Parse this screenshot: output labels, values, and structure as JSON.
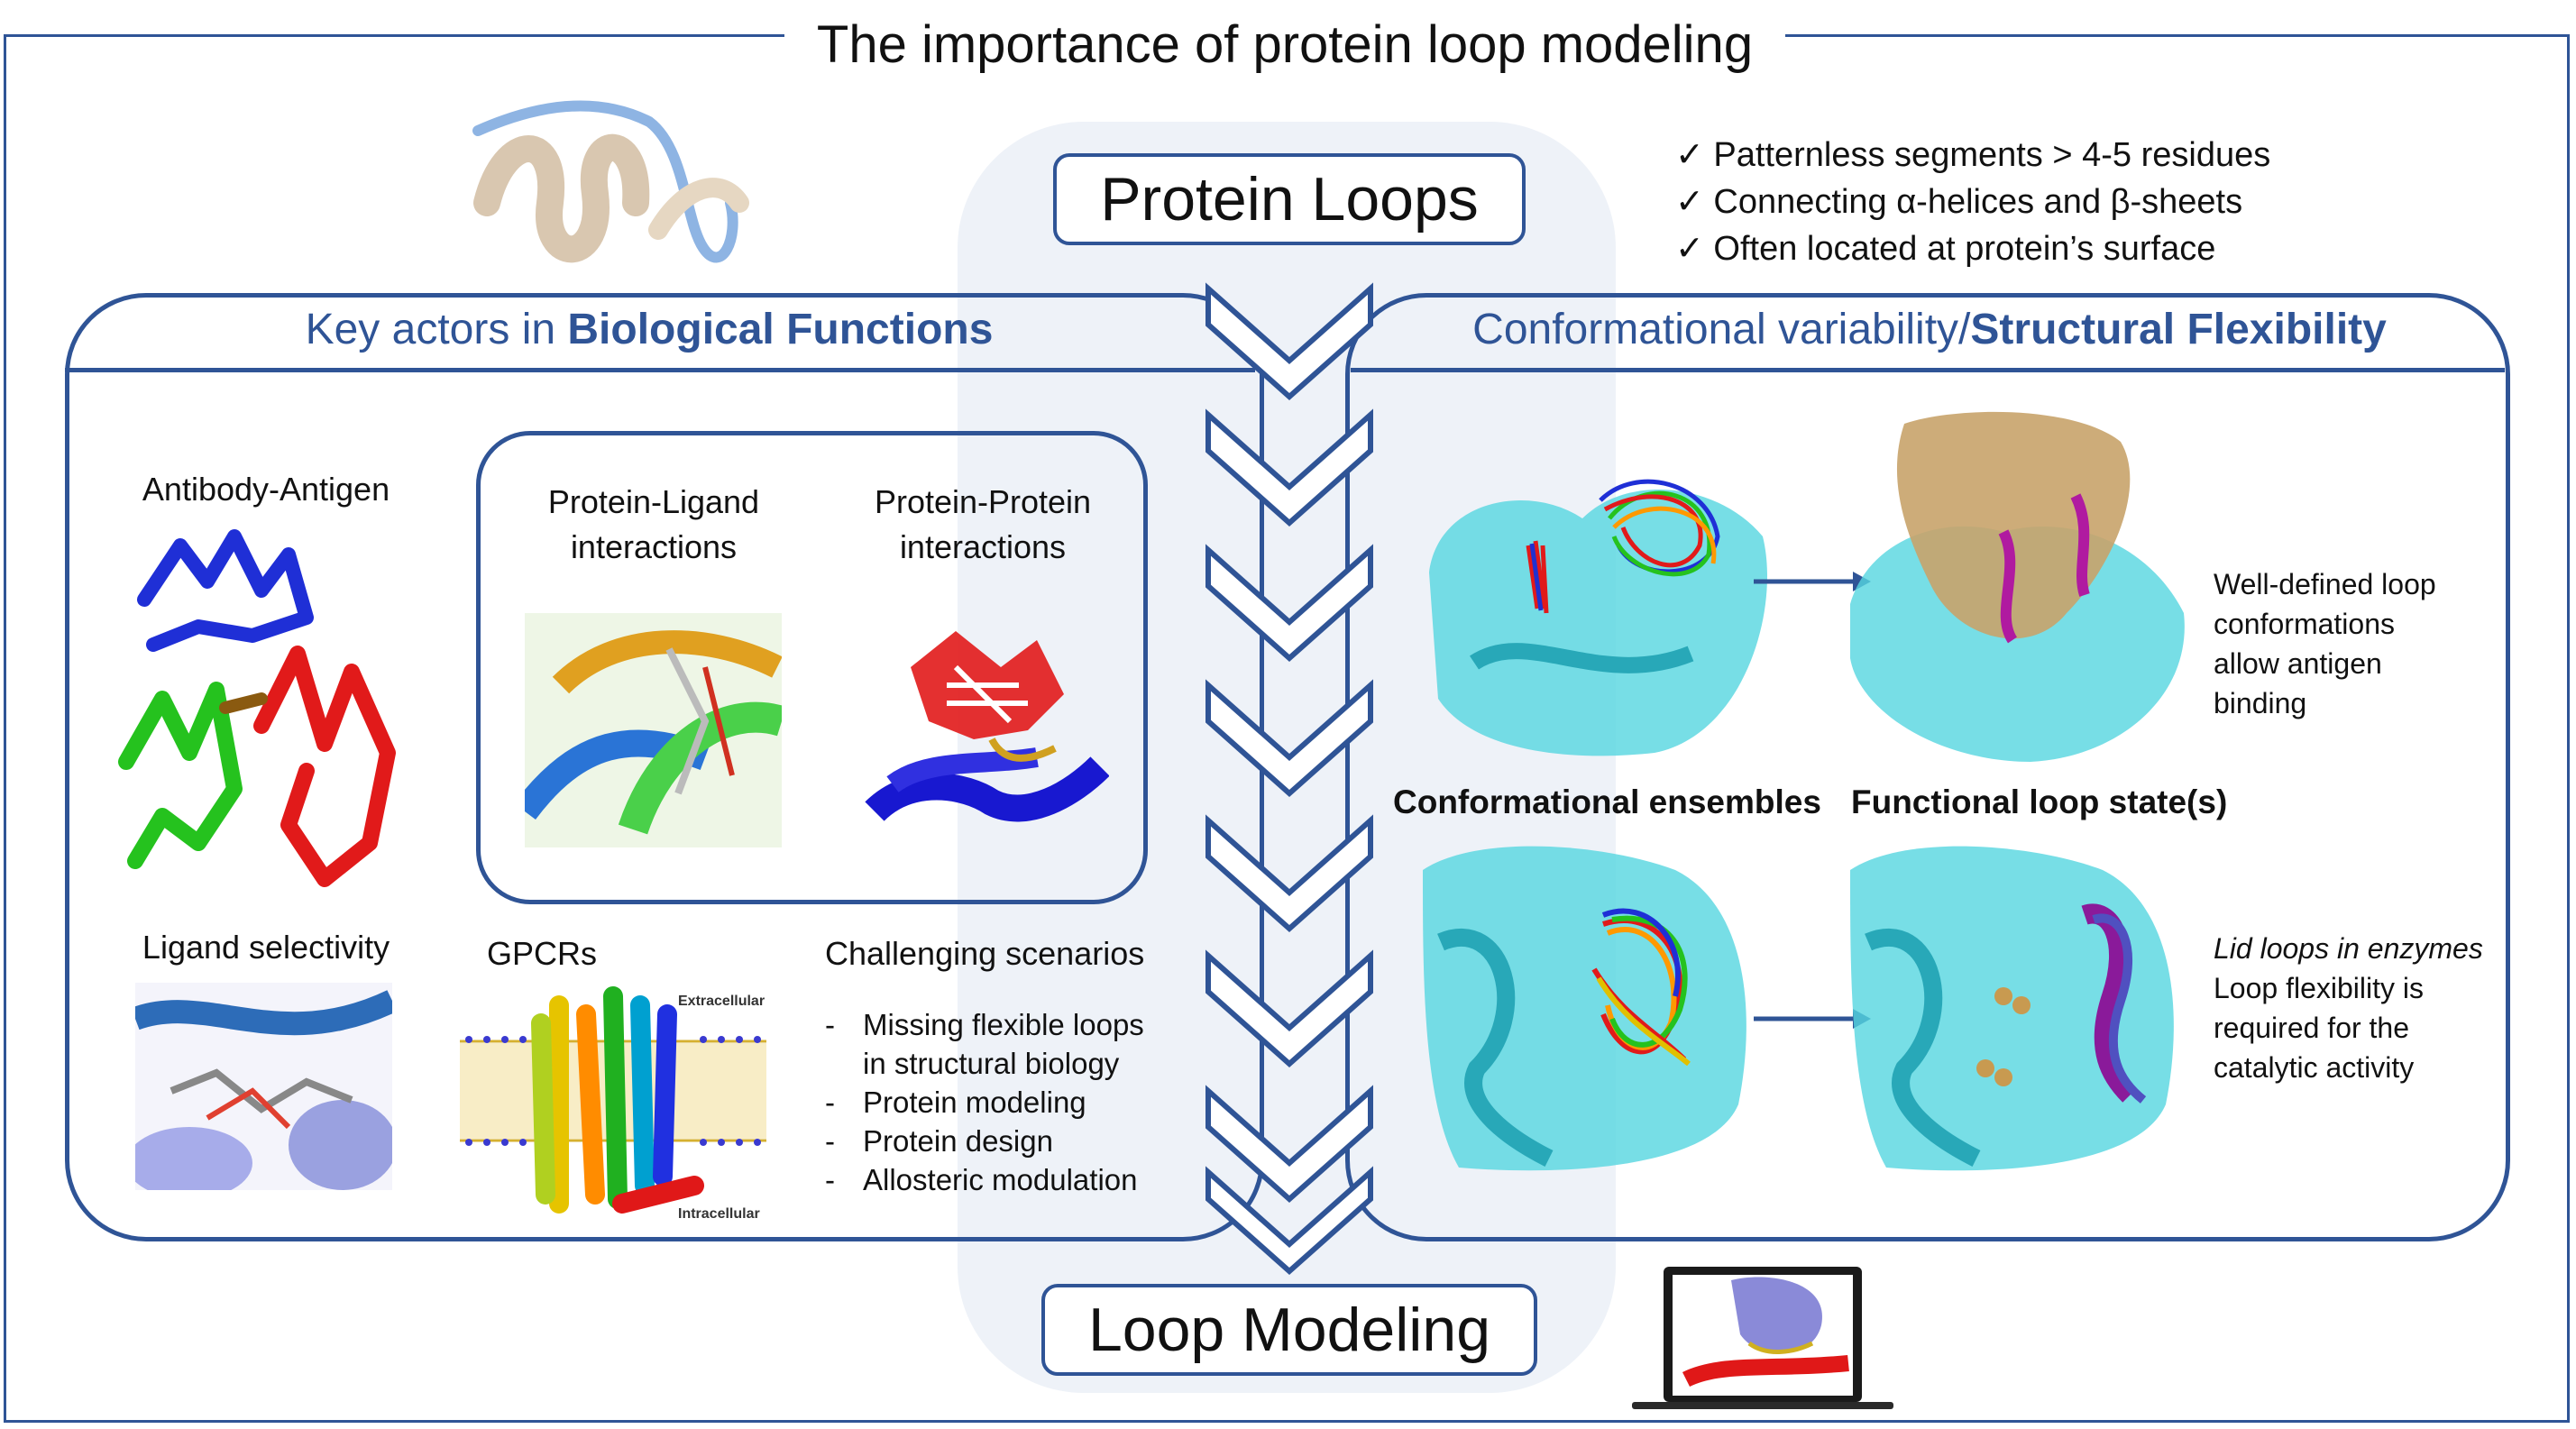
{
  "title": "The importance of protein loop modeling",
  "center": {
    "top_box": "Protein Loops",
    "bottom_box": "Loop Modeling"
  },
  "checklist": [
    {
      "mark": "✓",
      "text": "Patternless segments > 4-5 residues"
    },
    {
      "mark": "✓",
      "text": "Connecting α-helices and β-sheets"
    },
    {
      "mark": "✓",
      "text": "Often located at protein’s surface"
    }
  ],
  "left_panel": {
    "heading_plain": "Key actors in ",
    "heading_bold": "Biological Functions",
    "antibody": "Antibody-Antigen",
    "protein_ligand": [
      "Protein-Ligand",
      "interactions"
    ],
    "protein_protein": [
      "Protein-Protein",
      "interactions"
    ],
    "ligand_selectivity": "Ligand selectivity",
    "gpcrs": "GPCRs",
    "membrane_top": "Extracellular",
    "membrane_bottom": "Intracellular",
    "challenging_title": "Challenging scenarios",
    "challenging_items": [
      {
        "dash": "-",
        "lines": [
          "Missing flexible loops",
          "in structural biology"
        ]
      },
      {
        "dash": "-",
        "lines": [
          "Protein modeling"
        ]
      },
      {
        "dash": "-",
        "lines": [
          "Protein design"
        ]
      },
      {
        "dash": "-",
        "lines": [
          "Allosteric modulation"
        ]
      }
    ]
  },
  "right_panel": {
    "heading_plain": "Conformational variability/",
    "heading_bold": "Structural Flexibility",
    "conf_ensembles": "Conformational ensembles",
    "functional_state": "Functional loop state(s)",
    "antigen_note": [
      "Well-defined loop",
      "conformations",
      "allow antigen",
      "binding"
    ],
    "lid_title": "Lid loops in enzymes",
    "lid_note": [
      "Loop flexibility is",
      "required for the",
      "catalytic activity"
    ]
  },
  "colors": {
    "frame": "#2f5496",
    "band": "#eef2f8",
    "surface": "#55d6e0",
    "antigen": "#c8a36a"
  }
}
